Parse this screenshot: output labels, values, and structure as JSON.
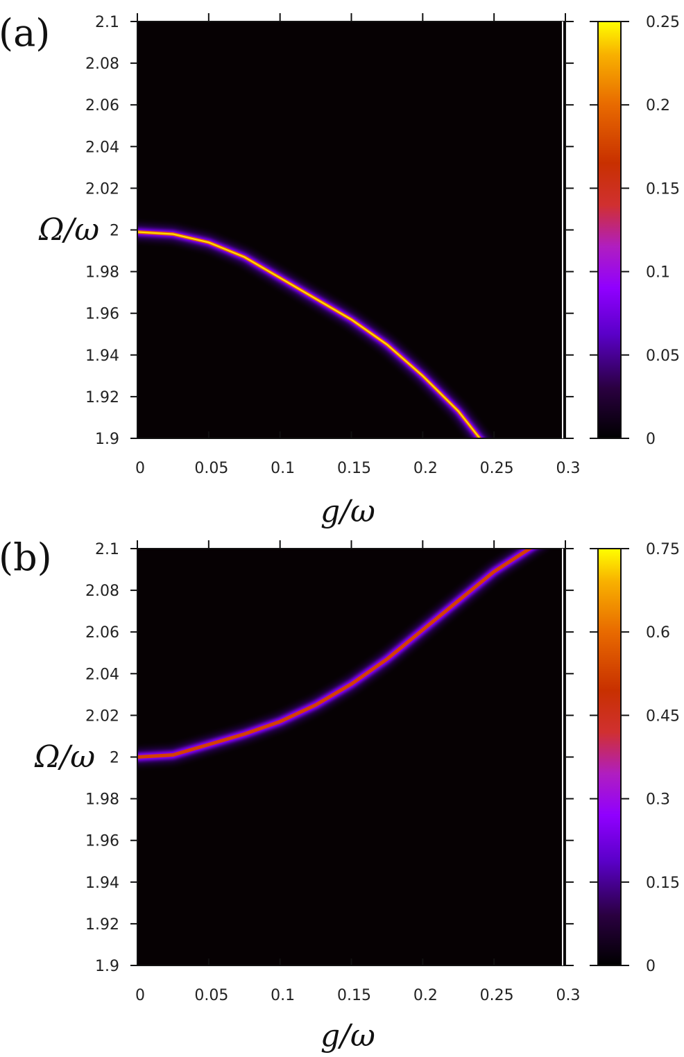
{
  "chart_data": [
    {
      "type": "heatmap",
      "panel_label": "(a)",
      "xlabel": "g/ω",
      "ylabel": "Ω/ω",
      "xlim": [
        0,
        0.3
      ],
      "ylim": [
        1.9,
        2.1
      ],
      "x_ticks": [
        0,
        0.05,
        0.1,
        0.15,
        0.2,
        0.25,
        0.3
      ],
      "x_tick_labels": [
        "0",
        "0.05",
        "0.1",
        "0.15",
        "0.2",
        "0.25",
        "0.3"
      ],
      "y_ticks": [
        1.9,
        1.92,
        1.94,
        1.96,
        1.98,
        2.0,
        2.02,
        2.04,
        2.06,
        2.08,
        2.1
      ],
      "y_tick_labels": [
        "1.9",
        "1.92",
        "1.94",
        "1.96",
        "1.98",
        "2",
        "2.02",
        "2.04",
        "2.06",
        "2.08",
        "2.1"
      ],
      "colorbar": {
        "range": [
          0,
          0.25
        ],
        "ticks": [
          0,
          0.05,
          0.1,
          0.15,
          0.2,
          0.25
        ],
        "tick_labels": [
          "0",
          "0.05",
          "0.1",
          "0.15",
          "0.2",
          "0.25"
        ],
        "colormap": "gnuplot-pm3d (black-purple-red-orange-yellow)"
      },
      "peak_curve": {
        "x": [
          0,
          0.025,
          0.05,
          0.075,
          0.1,
          0.125,
          0.15,
          0.175,
          0.2,
          0.225,
          0.24
        ],
        "y": [
          1.999,
          1.998,
          1.994,
          1.987,
          1.977,
          1.967,
          1.957,
          1.945,
          1.93,
          1.913,
          1.9
        ],
        "peak_value": 0.25
      }
    },
    {
      "type": "heatmap",
      "panel_label": "(b)",
      "xlabel": "g/ω",
      "ylabel": "Ω/ω",
      "xlim": [
        0,
        0.3
      ],
      "ylim": [
        1.9,
        2.1
      ],
      "x_ticks": [
        0,
        0.05,
        0.1,
        0.15,
        0.2,
        0.25,
        0.3
      ],
      "x_tick_labels": [
        "0",
        "0.05",
        "0.1",
        "0.15",
        "0.2",
        "0.25",
        "0.3"
      ],
      "y_ticks": [
        1.9,
        1.92,
        1.94,
        1.96,
        1.98,
        2.0,
        2.02,
        2.04,
        2.06,
        2.08,
        2.1
      ],
      "y_tick_labels": [
        "1.9",
        "1.92",
        "1.94",
        "1.96",
        "1.98",
        "2",
        "2.02",
        "2.04",
        "2.06",
        "2.08",
        "2.1"
      ],
      "colorbar": {
        "range": [
          0,
          0.75
        ],
        "ticks": [
          0,
          0.15,
          0.3,
          0.45,
          0.6,
          0.75
        ],
        "tick_labels": [
          "0",
          "0.15",
          "0.3",
          "0.45",
          "0.6",
          "0.75"
        ],
        "colormap": "gnuplot-pm3d (black-purple-red-orange-yellow)"
      },
      "peak_curve": {
        "x": [
          0,
          0.025,
          0.05,
          0.075,
          0.1,
          0.125,
          0.15,
          0.175,
          0.2,
          0.225,
          0.25,
          0.275
        ],
        "y": [
          2.0,
          2.001,
          2.006,
          2.011,
          2.017,
          2.025,
          2.035,
          2.047,
          2.061,
          2.075,
          2.089,
          2.1
        ],
        "peak_value": 0.45
      }
    }
  ]
}
